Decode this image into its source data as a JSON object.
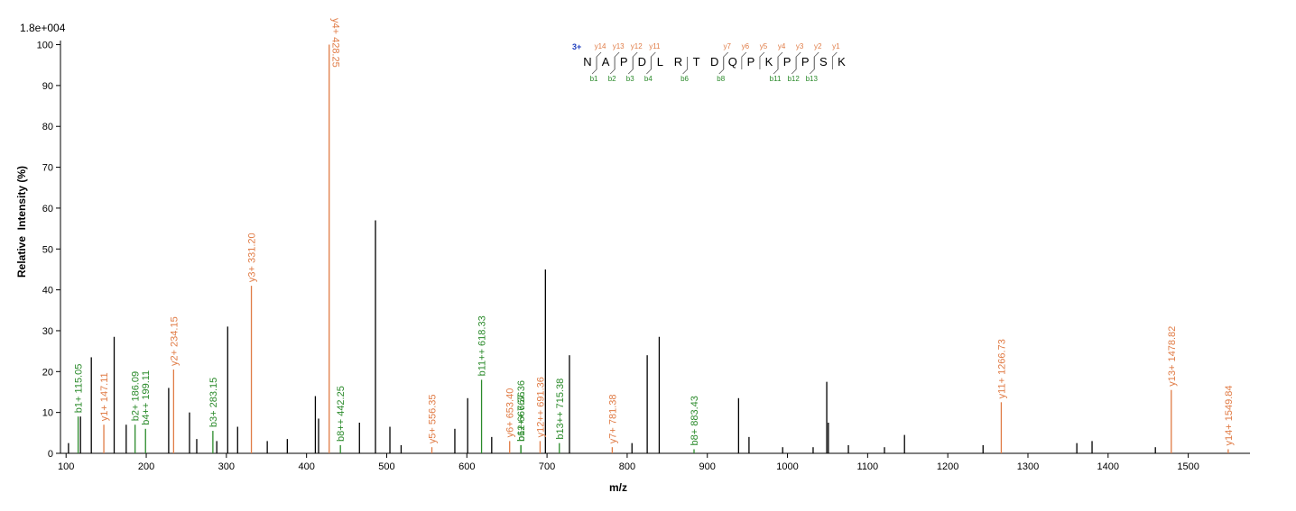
{
  "chart_data": {
    "type": "spectrum",
    "scale_label": "1.8e+004",
    "ylabel": "Relative  Intensity (%)",
    "xlabel": "m/z",
    "xlim": [
      93,
      1577
    ],
    "ylim": [
      0,
      101
    ],
    "xticks": [
      100,
      200,
      300,
      400,
      500,
      600,
      700,
      800,
      900,
      1000,
      1100,
      1200,
      1300,
      1400,
      1500
    ],
    "yticks": [
      0,
      10,
      20,
      30,
      40,
      50,
      60,
      70,
      80,
      90,
      100
    ],
    "peaks": {
      "color": "#000000",
      "x": [
        103,
        118,
        131.5,
        160,
        175,
        228,
        254,
        263,
        288,
        301.6,
        314,
        351,
        376,
        411,
        415,
        466,
        486,
        504,
        518,
        585,
        601,
        631,
        698,
        728,
        806,
        825,
        840,
        939,
        952,
        994,
        1032,
        1049,
        1051,
        1076,
        1121,
        1146,
        1244,
        1361,
        1380,
        1459
      ],
      "values": [
        2.5,
        9,
        23.5,
        28.5,
        7,
        16,
        10,
        3.5,
        3,
        31,
        6.5,
        3,
        3.5,
        14,
        8.5,
        7.5,
        57,
        6.5,
        2,
        6,
        13.5,
        4,
        45,
        24,
        2.5,
        24,
        28.5,
        13.5,
        4,
        1.5,
        1.5,
        17.5,
        7.5,
        2,
        1.5,
        4.5,
        2,
        2.5,
        3,
        1.5
      ]
    },
    "ion_colors": {
      "b": "#2a8a2a",
      "y": "#e07b45"
    },
    "ions": [
      {
        "label": "b1+ 115.05",
        "x": 115.05,
        "value": 9
      },
      {
        "label": "y1+ 147.11",
        "x": 147.11,
        "value": 7
      },
      {
        "label": "b2+ 186.09",
        "x": 186.09,
        "value": 7
      },
      {
        "label": "b4++ 199.11",
        "x": 199.11,
        "value": 6
      },
      {
        "label": "y2+ 234.15",
        "x": 234.15,
        "value": 20.5
      },
      {
        "label": "b3+ 283.15",
        "x": 283.15,
        "value": 5.5
      },
      {
        "label": "y3+ 331.20",
        "x": 331.2,
        "value": 41
      },
      {
        "label": "y4+ 428.25",
        "x": 428.25,
        "value": 100
      },
      {
        "label": "b8++ 442.25",
        "x": 442.25,
        "value": 2
      },
      {
        "label": "y5+ 556.35",
        "x": 556.35,
        "value": 1.5
      },
      {
        "label": "b11++ 618.33",
        "x": 618.33,
        "value": 18
      },
      {
        "label": "y6+ 653.40",
        "x": 653.4,
        "value": 3
      },
      {
        "label": "b6+ 667.36",
        "x": 667.36,
        "value": 2
      },
      {
        "label": "b12++ 667.36",
        "x": 667.36,
        "value": 2
      },
      {
        "label": "y12++ 691.36",
        "x": 691.36,
        "value": 3
      },
      {
        "label": "b13++ 715.38",
        "x": 715.38,
        "value": 2.5
      },
      {
        "label": "y7+ 781.38",
        "x": 781.38,
        "value": 1.5
      },
      {
        "label": "b8+ 883.43",
        "x": 883.43,
        "value": 1
      },
      {
        "label": "y11+ 1266.73",
        "x": 1266.73,
        "value": 12.5
      },
      {
        "label": "y13+ 1478.82",
        "x": 1478.82,
        "value": 15.5
      },
      {
        "label": "y14+ 1549.84",
        "x": 1549.84,
        "value": 1
      }
    ],
    "sequence": {
      "charge": "3+",
      "residues": [
        "N",
        "A",
        "P",
        "D",
        "L",
        "R",
        "T",
        "D",
        "Q",
        "P",
        "K",
        "P",
        "P",
        "S",
        "K"
      ],
      "b_ions": [
        "b1",
        "b2",
        "b3",
        "b4",
        "b6",
        "b8",
        "b11",
        "b12",
        "b13"
      ],
      "y_ions": [
        "y14",
        "y13",
        "y12",
        "y11",
        "y7",
        "y6",
        "y5",
        "y4",
        "y3",
        "y2",
        "y1"
      ]
    }
  }
}
